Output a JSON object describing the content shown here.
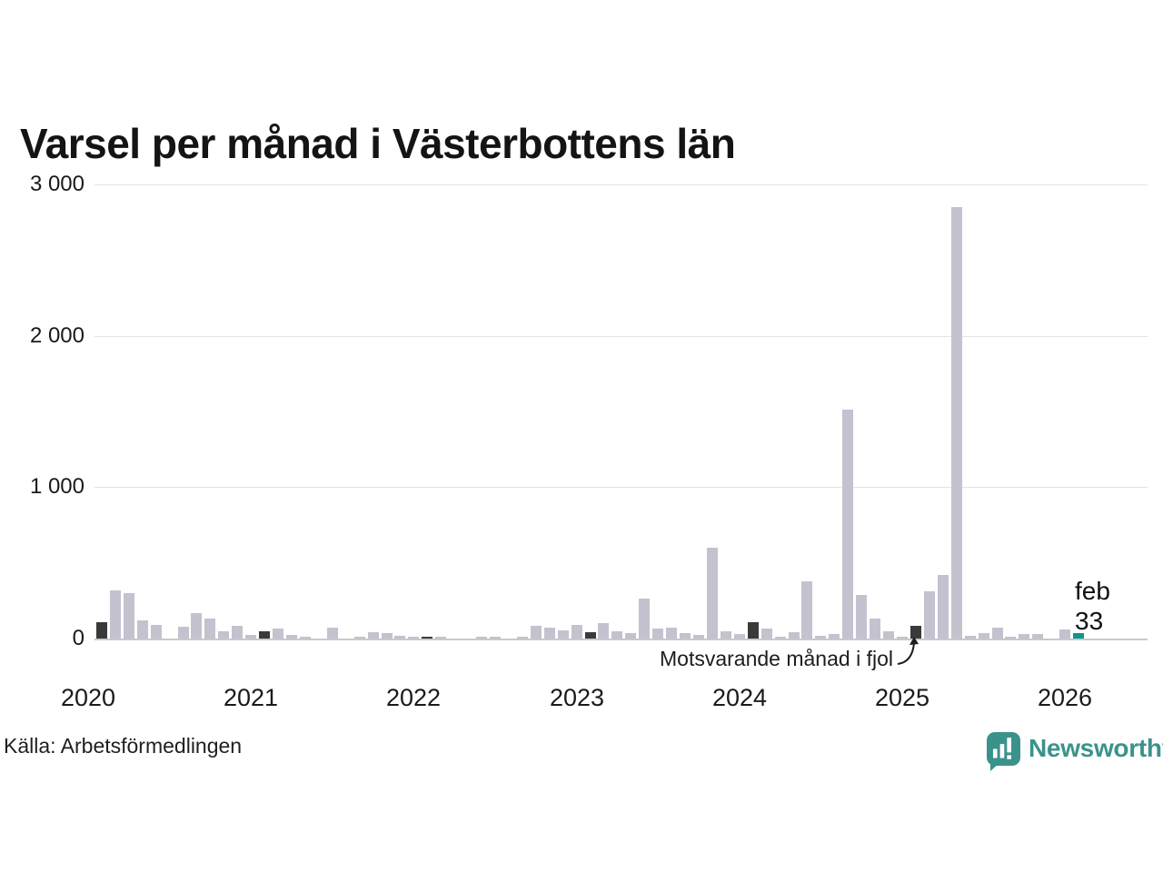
{
  "title": "Varsel per månad i Västerbottens län",
  "source": "Källa: Arbetsförmedlingen",
  "brand": {
    "name": "Newsworthy",
    "color": "#3a938b"
  },
  "annotation": {
    "text": "Motsvarande månad i fjol",
    "points_to": "feb 2025"
  },
  "latest_label": {
    "month": "feb",
    "value": "33"
  },
  "colors": {
    "bar_default": "#c4c2ce",
    "bar_highlight": "#3a3a3a",
    "bar_latest": "#0d978a",
    "gridline": "#e4e4e6",
    "baseline": "#c9c9cc",
    "text": "#1a1a1a"
  },
  "chart_data": {
    "type": "bar",
    "title": "Varsel per månad i Västerbottens län",
    "xlabel": "",
    "ylabel": "",
    "ylim": [
      0,
      3000
    ],
    "grid": "horizontal",
    "yticks": [
      {
        "value": 0,
        "label": "0"
      },
      {
        "value": 1000,
        "label": "1 000"
      },
      {
        "value": 2000,
        "label": "2 000"
      },
      {
        "value": 3000,
        "label": "3 000"
      }
    ],
    "year_labels": [
      "2020",
      "2021",
      "2022",
      "2023",
      "2024",
      "2025",
      "2026"
    ],
    "highlight_meaning": "Motsvarande månad i fjol (februari varje år)",
    "months": [
      {
        "m": "jan 2020",
        "v": 0
      },
      {
        "m": "feb 2020",
        "v": 105,
        "t": "h"
      },
      {
        "m": "mar 2020",
        "v": 320
      },
      {
        "m": "apr 2020",
        "v": 300
      },
      {
        "m": "maj 2020",
        "v": 122
      },
      {
        "m": "jun 2020",
        "v": 90
      },
      {
        "m": "jul 2020",
        "v": 0
      },
      {
        "m": "aug 2020",
        "v": 80
      },
      {
        "m": "sep 2020",
        "v": 165
      },
      {
        "m": "okt 2020",
        "v": 132
      },
      {
        "m": "nov 2020",
        "v": 45
      },
      {
        "m": "dec 2020",
        "v": 82
      },
      {
        "m": "jan 2021",
        "v": 25
      },
      {
        "m": "feb 2021",
        "v": 50,
        "t": "h"
      },
      {
        "m": "mar 2021",
        "v": 65
      },
      {
        "m": "apr 2021",
        "v": 25
      },
      {
        "m": "maj 2021",
        "v": 10
      },
      {
        "m": "jun 2021",
        "v": 0
      },
      {
        "m": "jul 2021",
        "v": 72
      },
      {
        "m": "aug 2021",
        "v": 0
      },
      {
        "m": "sep 2021",
        "v": 12
      },
      {
        "m": "okt 2021",
        "v": 42
      },
      {
        "m": "nov 2021",
        "v": 35
      },
      {
        "m": "dec 2021",
        "v": 16
      },
      {
        "m": "jan 2022",
        "v": 13
      },
      {
        "m": "feb 2022",
        "v": 8,
        "t": "h"
      },
      {
        "m": "mar 2022",
        "v": 11
      },
      {
        "m": "apr 2022",
        "v": 0
      },
      {
        "m": "maj 2022",
        "v": 0
      },
      {
        "m": "jun 2022",
        "v": 12
      },
      {
        "m": "jul 2022",
        "v": 9
      },
      {
        "m": "aug 2022",
        "v": 0
      },
      {
        "m": "sep 2022",
        "v": 12
      },
      {
        "m": "okt 2022",
        "v": 82
      },
      {
        "m": "nov 2022",
        "v": 72
      },
      {
        "m": "dec 2022",
        "v": 52
      },
      {
        "m": "jan 2023",
        "v": 92
      },
      {
        "m": "feb 2023",
        "v": 42,
        "t": "h"
      },
      {
        "m": "mar 2023",
        "v": 103
      },
      {
        "m": "apr 2023",
        "v": 45
      },
      {
        "m": "maj 2023",
        "v": 38
      },
      {
        "m": "jun 2023",
        "v": 265
      },
      {
        "m": "jul 2023",
        "v": 66
      },
      {
        "m": "aug 2023",
        "v": 72
      },
      {
        "m": "sep 2023",
        "v": 38
      },
      {
        "m": "okt 2023",
        "v": 25
      },
      {
        "m": "nov 2023",
        "v": 600
      },
      {
        "m": "dec 2023",
        "v": 46
      },
      {
        "m": "jan 2024",
        "v": 30
      },
      {
        "m": "feb 2024",
        "v": 108,
        "t": "h"
      },
      {
        "m": "mar 2024",
        "v": 68
      },
      {
        "m": "apr 2024",
        "v": 10
      },
      {
        "m": "maj 2024",
        "v": 44
      },
      {
        "m": "jun 2024",
        "v": 380
      },
      {
        "m": "jul 2024",
        "v": 18
      },
      {
        "m": "aug 2024",
        "v": 32
      },
      {
        "m": "sep 2024",
        "v": 1510
      },
      {
        "m": "okt 2024",
        "v": 288
      },
      {
        "m": "nov 2024",
        "v": 134
      },
      {
        "m": "dec 2024",
        "v": 50
      },
      {
        "m": "jan 2025",
        "v": 4
      },
      {
        "m": "feb 2025",
        "v": 84,
        "t": "h"
      },
      {
        "m": "mar 2025",
        "v": 312
      },
      {
        "m": "apr 2025",
        "v": 420
      },
      {
        "m": "maj 2025",
        "v": 2850
      },
      {
        "m": "jun 2025",
        "v": 18
      },
      {
        "m": "jul 2025",
        "v": 36
      },
      {
        "m": "aug 2025",
        "v": 70
      },
      {
        "m": "sep 2025",
        "v": 14
      },
      {
        "m": "okt 2025",
        "v": 28
      },
      {
        "m": "nov 2025",
        "v": 28
      },
      {
        "m": "dec 2025",
        "v": 0
      },
      {
        "m": "jan 2026",
        "v": 58
      },
      {
        "m": "feb 2026",
        "v": 33,
        "t": "latest"
      }
    ]
  }
}
